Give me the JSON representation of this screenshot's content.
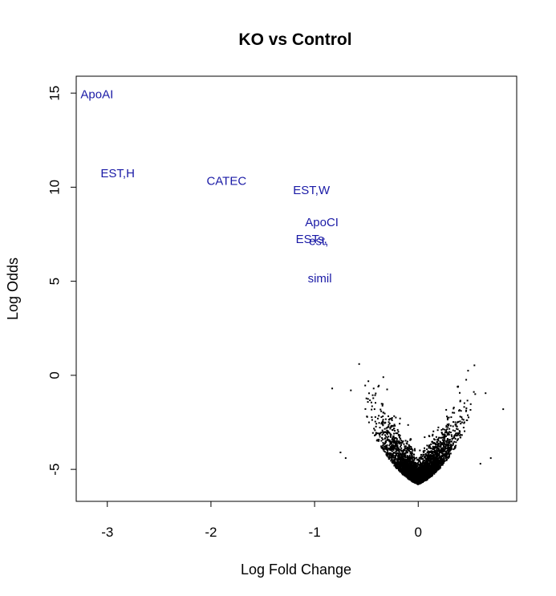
{
  "chart_data": {
    "type": "scatter",
    "title": "KO vs Control",
    "xlabel": "Log Fold Change",
    "ylabel": "Log Odds",
    "xlim": [
      -3.3,
      0.95
    ],
    "ylim": [
      -6.7,
      15.9
    ],
    "x_ticks": [
      -3,
      -2,
      -1,
      0
    ],
    "y_ticks": [
      -5,
      0,
      5,
      10,
      15
    ],
    "grid": false,
    "label_color": "#1a1aa6",
    "point_color": "#000000",
    "labeled_points": [
      {
        "label": "ApoAI",
        "x": -3.1,
        "y": 14.9
      },
      {
        "label": "EST,H",
        "x": -2.9,
        "y": 10.7
      },
      {
        "label": "CATEC",
        "x": -1.85,
        "y": 10.3
      },
      {
        "label": "EST,W",
        "x": -1.03,
        "y": 9.8
      },
      {
        "label": "ApoCI",
        "x": -0.93,
        "y": 8.1
      },
      {
        "label": "ESTs,",
        "x": -1.03,
        "y": 7.2
      },
      {
        "label": "est,",
        "x": -0.96,
        "y": 7.1
      },
      {
        "label": "simil",
        "x": -0.95,
        "y": 5.1
      }
    ],
    "points_note": "",
    "outliers": [
      {
        "x": -0.57,
        "y": 0.6
      },
      {
        "x": -0.83,
        "y": -0.7
      },
      {
        "x": -0.65,
        "y": -0.8
      },
      {
        "x": 0.82,
        "y": -1.8
      },
      {
        "x": 0.65,
        "y": -0.95
      },
      {
        "x": 0.55,
        "y": -1.0
      },
      {
        "x": 0.38,
        "y": -0.6
      },
      {
        "x": -0.38,
        "y": -0.55
      },
      {
        "x": -0.43,
        "y": -0.7
      },
      {
        "x": -0.3,
        "y": -0.75
      },
      {
        "x": -0.75,
        "y": -4.1
      },
      {
        "x": -0.7,
        "y": -4.4
      },
      {
        "x": 0.7,
        "y": -4.4
      },
      {
        "x": 0.6,
        "y": -4.7
      }
    ]
  }
}
